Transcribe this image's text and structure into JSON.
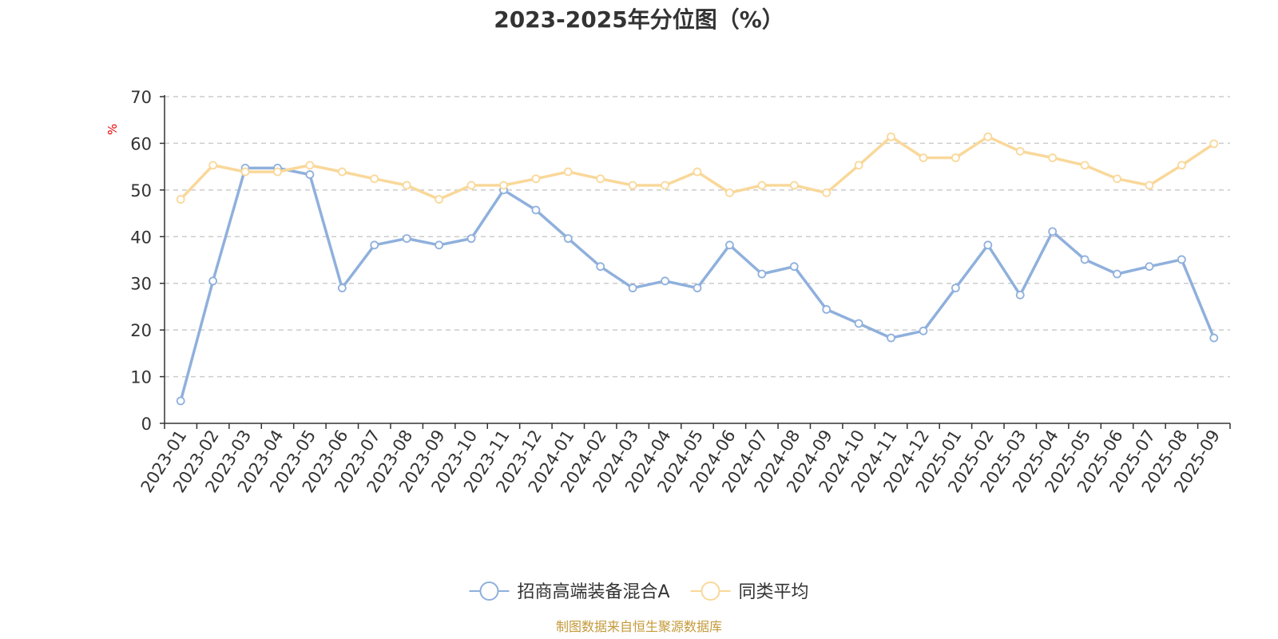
{
  "chart_data": {
    "type": "line",
    "title": "2023-2025年分位图（%）",
    "ylabel": "%",
    "xlabel": "",
    "ylim": [
      0,
      70
    ],
    "yticks": [
      0,
      10,
      20,
      30,
      40,
      50,
      60,
      70
    ],
    "grid": true,
    "legend_position": "bottom",
    "categories": [
      "2023-01",
      "2023-02",
      "2023-03",
      "2023-04",
      "2023-05",
      "2023-06",
      "2023-07",
      "2023-08",
      "2023-09",
      "2023-10",
      "2023-11",
      "2023-12",
      "2024-01",
      "2024-02",
      "2024-03",
      "2024-04",
      "2024-05",
      "2024-06",
      "2024-07",
      "2024-08",
      "2024-09",
      "2024-10",
      "2024-11",
      "2024-12",
      "2025-01",
      "2025-02",
      "2025-03",
      "2025-04",
      "2025-05",
      "2025-06",
      "2025-07",
      "2025-08",
      "2025-09"
    ],
    "series": [
      {
        "name": "招商高端装备混合A",
        "color": "#8fb0dc",
        "values": [
          4.8,
          30.5,
          54.7,
          54.7,
          53.3,
          29.0,
          38.2,
          39.6,
          38.2,
          39.6,
          50.0,
          45.7,
          39.6,
          33.6,
          29.0,
          30.5,
          29.0,
          38.2,
          32.0,
          33.6,
          24.4,
          21.4,
          18.3,
          19.8,
          29.0,
          38.2,
          27.5,
          41.1,
          35.1,
          32.0,
          33.6,
          35.1,
          18.3
        ]
      },
      {
        "name": "同类平均",
        "color": "#f9d89a",
        "values": [
          48.0,
          55.3,
          53.9,
          53.9,
          55.3,
          53.9,
          52.4,
          51.0,
          48.0,
          51.0,
          51.0,
          52.4,
          53.9,
          52.4,
          51.0,
          51.0,
          53.9,
          49.4,
          51.0,
          51.0,
          49.4,
          55.3,
          61.4,
          56.9,
          56.9,
          61.4,
          58.3,
          56.9,
          55.3,
          52.4,
          51.0,
          55.3,
          59.9
        ]
      }
    ]
  },
  "footer": {
    "source": "制图数据来自恒生聚源数据库"
  }
}
